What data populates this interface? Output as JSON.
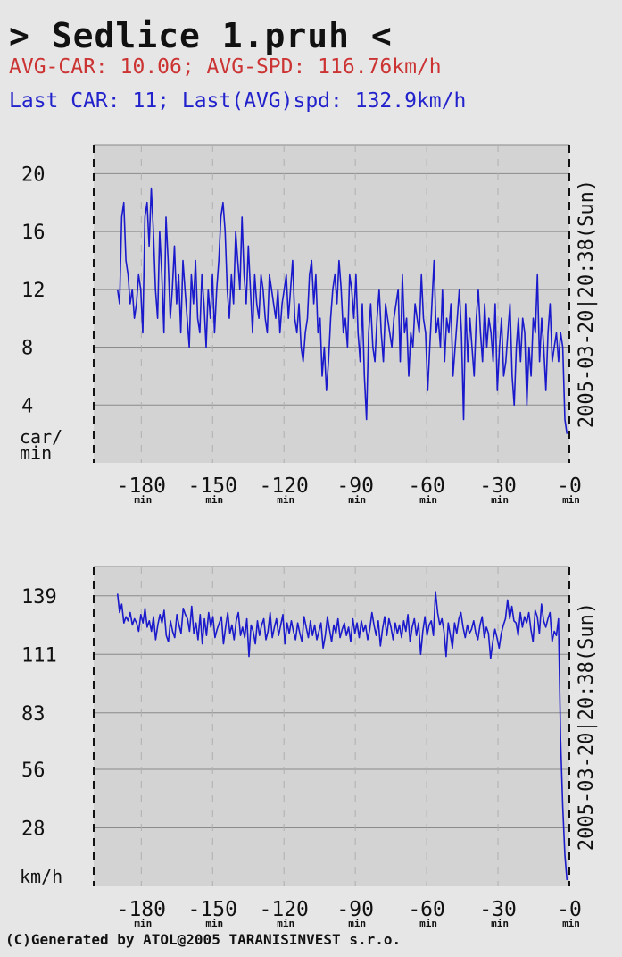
{
  "header": {
    "title": "> Sedlice 1.pruh <",
    "avg_line": "AVG-CAR: 10.06; AVG-SPD: 116.76km/h",
    "last_line": "Last CAR: 11; Last(AVG)spd: 132.9km/h"
  },
  "footer": {
    "text": "(C)Generated by ATOL@2005 TARANISINVEST s.r.o."
  },
  "colors": {
    "series": "#1a1acc",
    "plot_bg": "#d3d3d3",
    "avg_text": "#cc3333",
    "last_text": "#2222cc"
  },
  "chart_data": [
    {
      "type": "line",
      "title": "",
      "ylabel_lines": [
        "car/",
        "min"
      ],
      "side_label": "2005-03-20|20:38(Sun)",
      "xlim": [
        -200,
        0
      ],
      "ylim": [
        0,
        22
      ],
      "yticks": [
        4,
        8,
        12,
        16,
        20
      ],
      "ytick_labels": [
        "4",
        "8",
        "12",
        "16",
        "20"
      ],
      "xticks": [
        -180,
        -150,
        -120,
        -90,
        -60,
        -30,
        0
      ],
      "xtick_labels": [
        "-180",
        "-150",
        "-120",
        "-90",
        "-60",
        "-30",
        "-0"
      ],
      "xtick_unit": "min",
      "grid": true,
      "series": [
        {
          "values": [
            12,
            11,
            17,
            18,
            14,
            13,
            11,
            12,
            10,
            11,
            13,
            12,
            9,
            17,
            18,
            15,
            19,
            16,
            12,
            10,
            16,
            13,
            9,
            17,
            14,
            10,
            12,
            15,
            11,
            13,
            9,
            14,
            12,
            10,
            8,
            13,
            11,
            14,
            10,
            9,
            13,
            11,
            8,
            12,
            10,
            13,
            9,
            12,
            14,
            17,
            18,
            16,
            12,
            10,
            13,
            11,
            16,
            14,
            12,
            17,
            13,
            11,
            15,
            12,
            9,
            13,
            11,
            10,
            13,
            12,
            10,
            9,
            13,
            12,
            11,
            10,
            12,
            9,
            11,
            12,
            13,
            10,
            12,
            14,
            10,
            9,
            11,
            8,
            7,
            9,
            10,
            13,
            14,
            11,
            13,
            9,
            10,
            6,
            8,
            5,
            7,
            10,
            12,
            13,
            11,
            14,
            12,
            9,
            10,
            8,
            13,
            12,
            10,
            13,
            9,
            7,
            11,
            6,
            3,
            9,
            11,
            8,
            7,
            10,
            12,
            9,
            7,
            11,
            10,
            9,
            8,
            10,
            11,
            12,
            7,
            13,
            9,
            10,
            6,
            9,
            8,
            11,
            10,
            9,
            13,
            10,
            9,
            5,
            8,
            11,
            14,
            9,
            10,
            8,
            12,
            7,
            10,
            9,
            11,
            6,
            8,
            10,
            12,
            9,
            3,
            11,
            7,
            10,
            8,
            6,
            10,
            12,
            9,
            7,
            11,
            8,
            10,
            9,
            7,
            11,
            5,
            8,
            10,
            6,
            7,
            9,
            11,
            6,
            4,
            8,
            10,
            7,
            10,
            9,
            4,
            8,
            6,
            10,
            9,
            13,
            7,
            10,
            8,
            5,
            9,
            11,
            7,
            8,
            9,
            7,
            9,
            8,
            3,
            2
          ]
        }
      ]
    },
    {
      "type": "line",
      "title": "",
      "ylabel_lines": [
        "km/h"
      ],
      "side_label": "2005-03-20|20:38(Sun)",
      "xlim": [
        -200,
        0
      ],
      "ylim": [
        0,
        153
      ],
      "yticks": [
        28,
        56,
        83,
        111,
        139
      ],
      "ytick_labels": [
        "28",
        "56",
        "83",
        "111",
        "139"
      ],
      "xticks": [
        -180,
        -150,
        -120,
        -90,
        -60,
        -30,
        0
      ],
      "xtick_labels": [
        "-180",
        "-150",
        "-120",
        "-90",
        "-60",
        "-30",
        "-0"
      ],
      "xtick_unit": "min",
      "grid": true,
      "series": [
        {
          "values": [
            140,
            131,
            135,
            126,
            129,
            127,
            131,
            125,
            128,
            126,
            122,
            130,
            126,
            133,
            124,
            127,
            122,
            129,
            118,
            125,
            130,
            126,
            132,
            120,
            117,
            127,
            122,
            119,
            130,
            125,
            121,
            133,
            130,
            128,
            122,
            134,
            121,
            126,
            118,
            130,
            116,
            128,
            120,
            131,
            124,
            129,
            119,
            123,
            126,
            129,
            116,
            124,
            131,
            121,
            125,
            118,
            127,
            131,
            120,
            124,
            119,
            128,
            110,
            125,
            122,
            116,
            127,
            120,
            125,
            128,
            118,
            122,
            131,
            119,
            124,
            128,
            120,
            125,
            130,
            116,
            126,
            121,
            127,
            122,
            118,
            126,
            121,
            117,
            129,
            124,
            119,
            127,
            120,
            125,
            118,
            122,
            126,
            114,
            120,
            129,
            123,
            117,
            125,
            121,
            128,
            119,
            123,
            126,
            120,
            124,
            117,
            128,
            121,
            126,
            119,
            127,
            122,
            125,
            118,
            123,
            131,
            125,
            120,
            127,
            115,
            123,
            129,
            120,
            128,
            124,
            118,
            126,
            121,
            125,
            119,
            127,
            122,
            130,
            117,
            124,
            128,
            120,
            126,
            111,
            122,
            129,
            120,
            125,
            127,
            120,
            141,
            131,
            125,
            128,
            122,
            110,
            126,
            120,
            114,
            126,
            121,
            128,
            131,
            124,
            119,
            125,
            121,
            123,
            127,
            121,
            118,
            125,
            129,
            119,
            124,
            121,
            109,
            117,
            123,
            119,
            114,
            121,
            125,
            128,
            137,
            128,
            134,
            127,
            126,
            120,
            131,
            124,
            129,
            126,
            131,
            123,
            117,
            132,
            129,
            121,
            135,
            127,
            124,
            128,
            131,
            117,
            122,
            120,
            128,
            70,
            38,
            15,
            3
          ]
        }
      ]
    }
  ]
}
